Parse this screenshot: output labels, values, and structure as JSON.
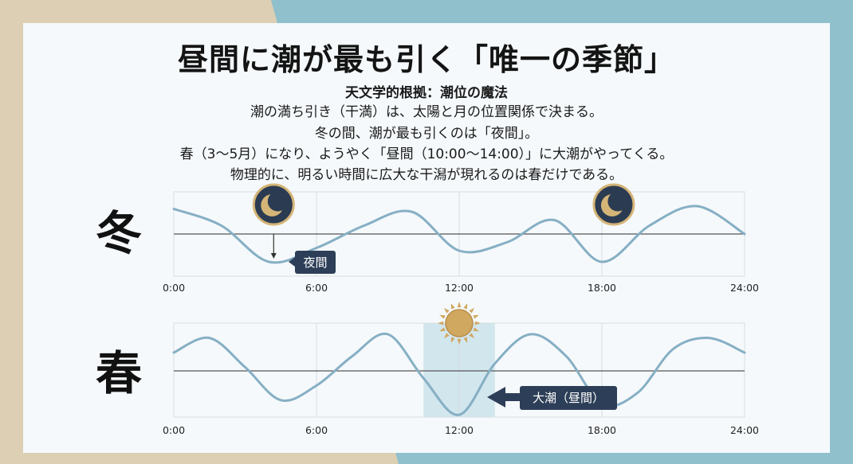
{
  "title": "昼間に潮が最も引く「唯一の季節」",
  "subtitle": "天文学的根拠：潮位の魔法",
  "body_lines": [
    "潮の満ち引き（干満）は、太陽と月の位置関係で決まる。",
    "冬の間、潮が最も引くのは「夜間」。",
    "春（3〜5月）になり、ようやく「昼間（10:00〜14:00）」に大潮がやってくる。",
    "物理的に、明るい時間に広大な干潟が現れるのは春だけである。"
  ],
  "colors": {
    "wave": "#86afc4",
    "label_bg": "#2d3f58",
    "highlight": "#d2e6ee",
    "moon_disc": "#2b3b52",
    "moon_ring": "#d5b577",
    "sun": "#d1a860"
  },
  "chart_data": [
    {
      "type": "line",
      "season_label": "冬",
      "x_ticks": [
        "0:00",
        "6:00",
        "12:00",
        "18:00",
        "24:00"
      ],
      "x_range": [
        0,
        24
      ],
      "y_range": [
        -1.2,
        1.2
      ],
      "series": [
        {
          "x": [
            0,
            2,
            4,
            6,
            8,
            10,
            12,
            14,
            16,
            18,
            20,
            22,
            24
          ],
          "y": [
            0.9,
            0.3,
            -1.0,
            -0.5,
            0.3,
            0.8,
            -0.6,
            -0.3,
            0.5,
            -1.0,
            0.3,
            1.0,
            0.0
          ]
        }
      ],
      "icons": [
        {
          "type": "moon-icon",
          "x": 4.2
        },
        {
          "type": "moon-icon",
          "x": 18.5
        }
      ],
      "annotations": [
        {
          "text": "夜間",
          "x": 4.2,
          "arrow": "down"
        }
      ]
    },
    {
      "type": "line",
      "season_label": "春",
      "x_ticks": [
        "0:00",
        "6:00",
        "12:00",
        "18:00",
        "24:00"
      ],
      "x_range": [
        0,
        24
      ],
      "y_range": [
        -1.2,
        1.2
      ],
      "series": [
        {
          "x": [
            0,
            1.5,
            3,
            4.5,
            6,
            7.5,
            9,
            10.5,
            12,
            13.5,
            15,
            16.5,
            18,
            19.5,
            21,
            22.5,
            24
          ],
          "y": [
            0.5,
            0.9,
            0.1,
            -0.8,
            -0.4,
            0.4,
            1.0,
            -0.2,
            -1.2,
            0.2,
            1.0,
            0.4,
            -0.9,
            -0.6,
            0.6,
            0.9,
            0.5
          ]
        }
      ],
      "highlight_range": [
        10.5,
        13.5
      ],
      "icons": [
        {
          "type": "sun-icon",
          "x": 12
        }
      ],
      "annotations": [
        {
          "text": "大潮（昼間）",
          "x": 12,
          "arrow": "left"
        }
      ]
    }
  ]
}
